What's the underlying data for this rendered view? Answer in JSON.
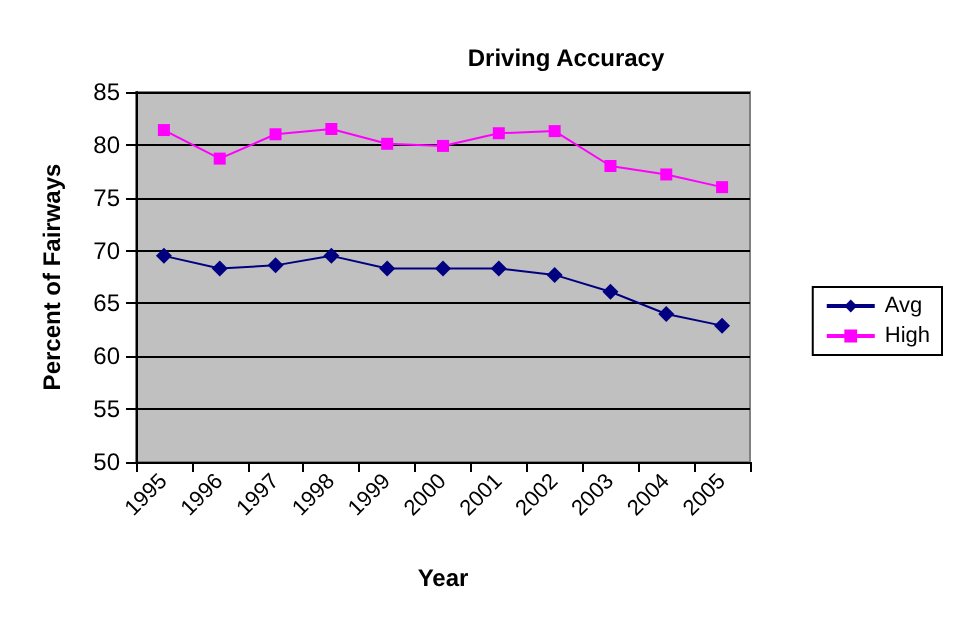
{
  "chart_data": {
    "type": "line",
    "title": "Driving Accuracy",
    "xlabel": "Year",
    "ylabel": "Percent of Fairways",
    "categories": [
      "1995",
      "1996",
      "1997",
      "1998",
      "1999",
      "2000",
      "2001",
      "2002",
      "2003",
      "2004",
      "2005"
    ],
    "series": [
      {
        "name": "Avg",
        "color": "#000080",
        "marker": "diamond",
        "values": [
          69.5,
          68.3,
          68.6,
          69.5,
          68.3,
          68.3,
          68.3,
          67.7,
          66.1,
          64.0,
          62.9
        ]
      },
      {
        "name": "High",
        "color": "#ff00ff",
        "marker": "square",
        "values": [
          81.4,
          78.7,
          81.0,
          81.5,
          80.1,
          79.9,
          81.1,
          81.3,
          78.0,
          77.2,
          76.0
        ]
      }
    ],
    "ylim": [
      50,
      85
    ],
    "yticks": [
      50,
      55,
      60,
      65,
      70,
      75,
      80,
      85
    ],
    "grid": "y",
    "legend": "right",
    "line_style": "solid"
  }
}
